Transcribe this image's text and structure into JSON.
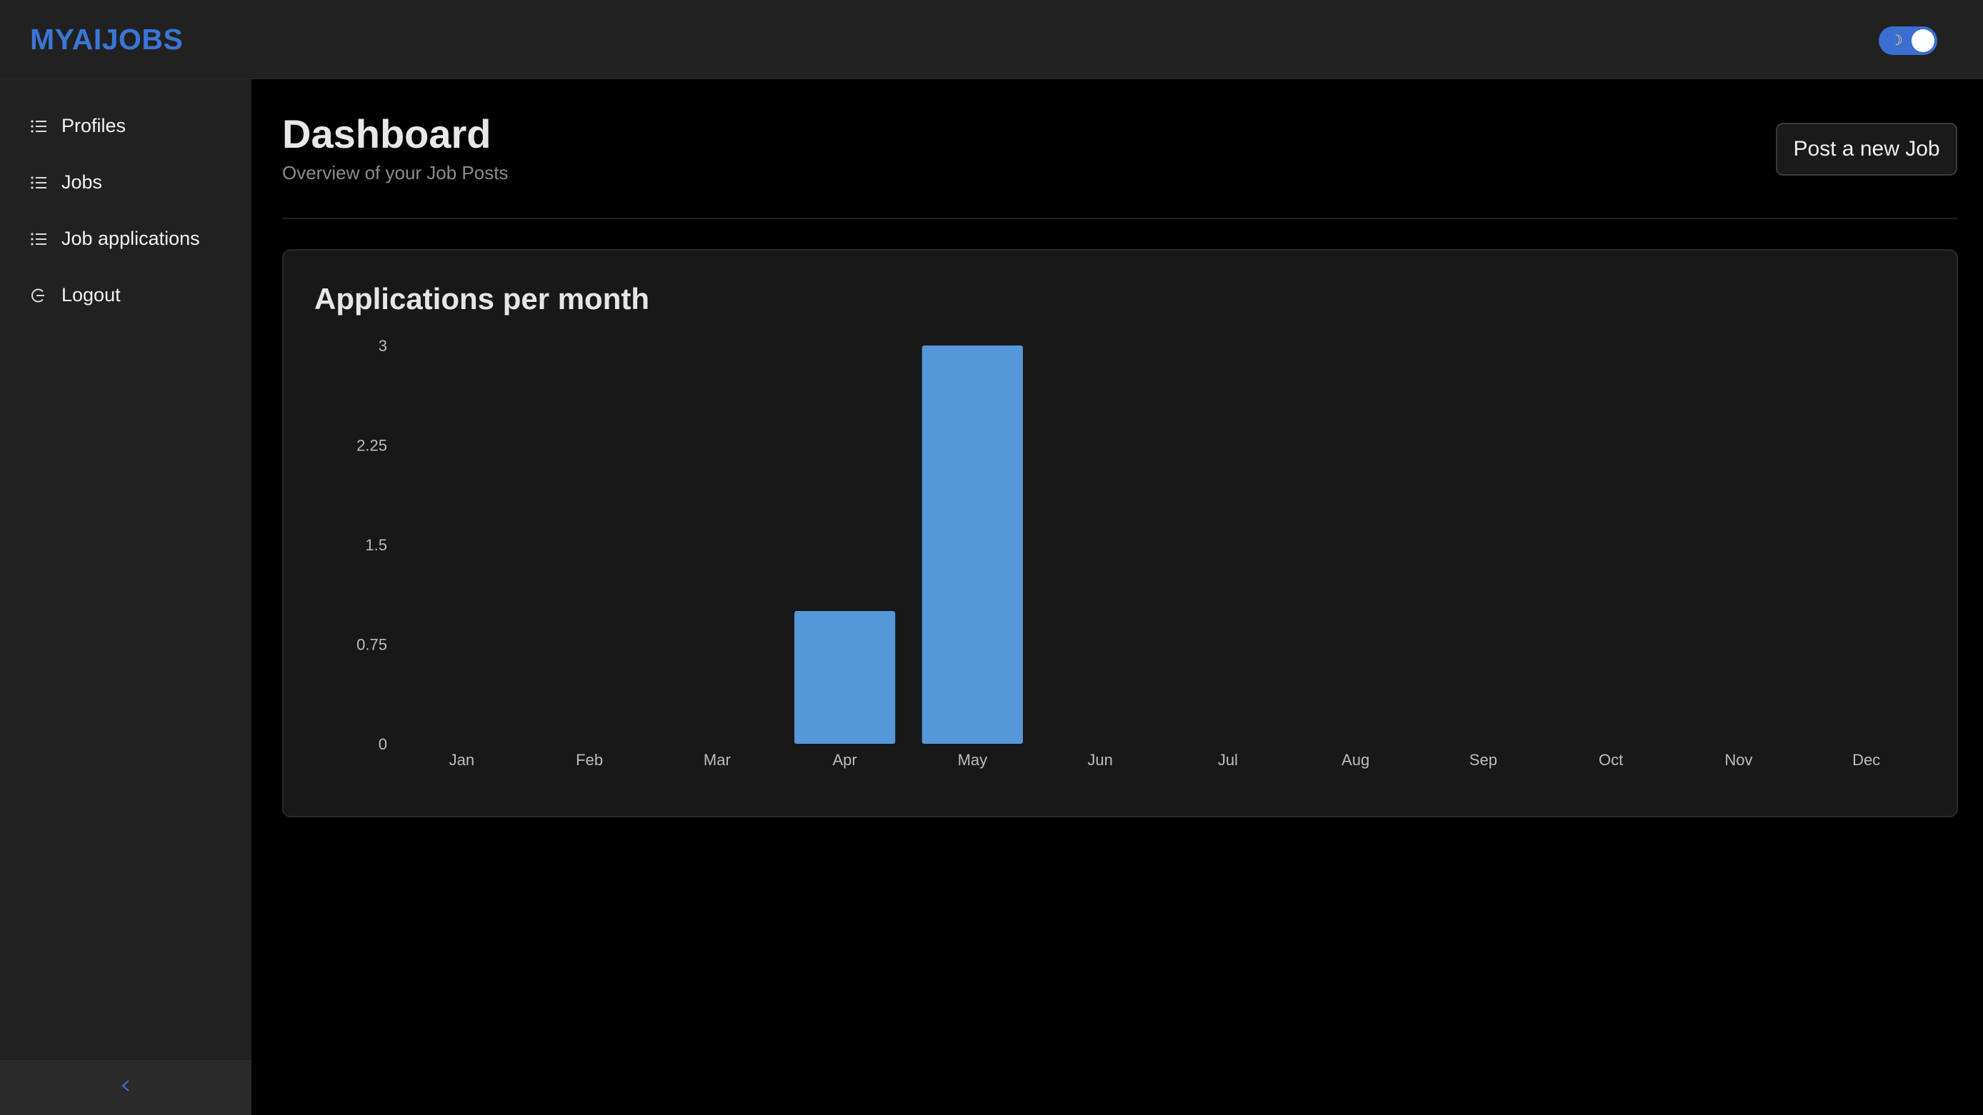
{
  "header": {
    "brand": "MYAIJOBS",
    "theme_toggle": {
      "state": "dark",
      "moon_glyph": "☽"
    }
  },
  "sidebar": {
    "items": [
      {
        "label": "Profiles",
        "icon": "list-icon"
      },
      {
        "label": "Jobs",
        "icon": "list-icon"
      },
      {
        "label": "Job applications",
        "icon": "list-icon"
      },
      {
        "label": "Logout",
        "icon": "logout-icon"
      }
    ],
    "collapse_glyph": "<"
  },
  "main": {
    "title": "Dashboard",
    "subtitle": "Overview of your Job Posts",
    "post_button_label": "Post a new Job",
    "card_title": "Applications per month"
  },
  "colors": {
    "accent": "#3a76d6",
    "bar": "#5598da",
    "toggle": "#3a6fd1",
    "background": "#000000",
    "panel": "#212121"
  },
  "chart_data": {
    "type": "bar",
    "title": "Applications per month",
    "categories": [
      "Jan",
      "Feb",
      "Mar",
      "Apr",
      "May",
      "Jun",
      "Jul",
      "Aug",
      "Sep",
      "Oct",
      "Nov",
      "Dec"
    ],
    "values": [
      0,
      0,
      0,
      1,
      3,
      0,
      0,
      0,
      0,
      0,
      0,
      0
    ],
    "y_ticks": [
      "0",
      "0.75",
      "1.5",
      "2.25",
      "3"
    ],
    "ylim": [
      0,
      3
    ],
    "xlabel": "",
    "ylabel": "",
    "grid": false,
    "legend": "none"
  }
}
